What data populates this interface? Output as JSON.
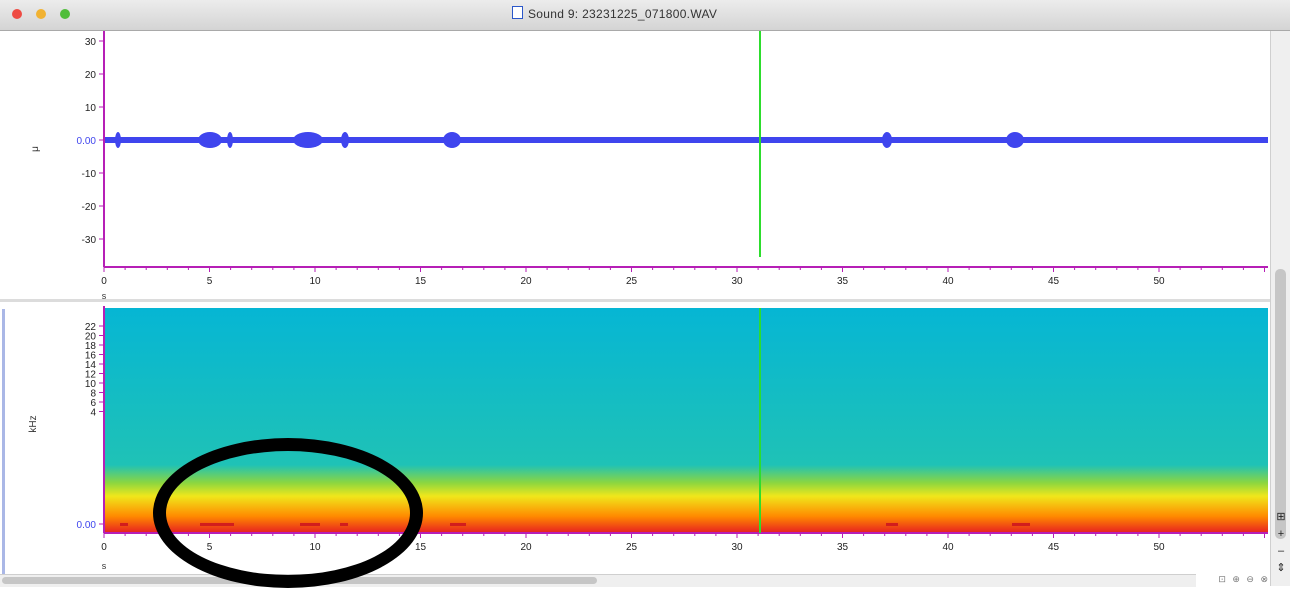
{
  "window": {
    "title": "Sound 9: 23231225_071800.WAV",
    "controls": [
      "close",
      "minimize",
      "maximize"
    ]
  },
  "waveform": {
    "unit_label": "μ",
    "y_ticks": [
      "30",
      "20",
      "10",
      "0.00",
      "-10",
      "-20",
      "-30"
    ],
    "x_ticks": [
      "0",
      "5",
      "10",
      "15",
      "20",
      "25",
      "30",
      "35",
      "40",
      "45",
      "50"
    ],
    "x_unit": "s",
    "line_color": "#3f45ee",
    "axis_color": "#b61fb6"
  },
  "spectrogram": {
    "unit_label": "kHz",
    "y_ticks": [
      "22",
      "20",
      "18",
      "16",
      "14",
      "12",
      "10",
      "8",
      "6",
      "4",
      "0.00"
    ],
    "x_ticks": [
      "0",
      "5",
      "10",
      "15",
      "20",
      "25",
      "30",
      "35",
      "40",
      "45",
      "50"
    ],
    "x_unit": "s",
    "colormap": [
      "#06b6d4",
      "#27c6a0",
      "#8bd640",
      "#f0e71b",
      "#ff8a00",
      "#e8251f"
    ]
  },
  "cursor": {
    "time": "31",
    "color": "#2ddd2d"
  },
  "scroll_buttons": [
    "⊞",
    "+",
    "–",
    "⇕"
  ],
  "corner_icons": "⊡ ⊕ ⊖ ⊗"
}
